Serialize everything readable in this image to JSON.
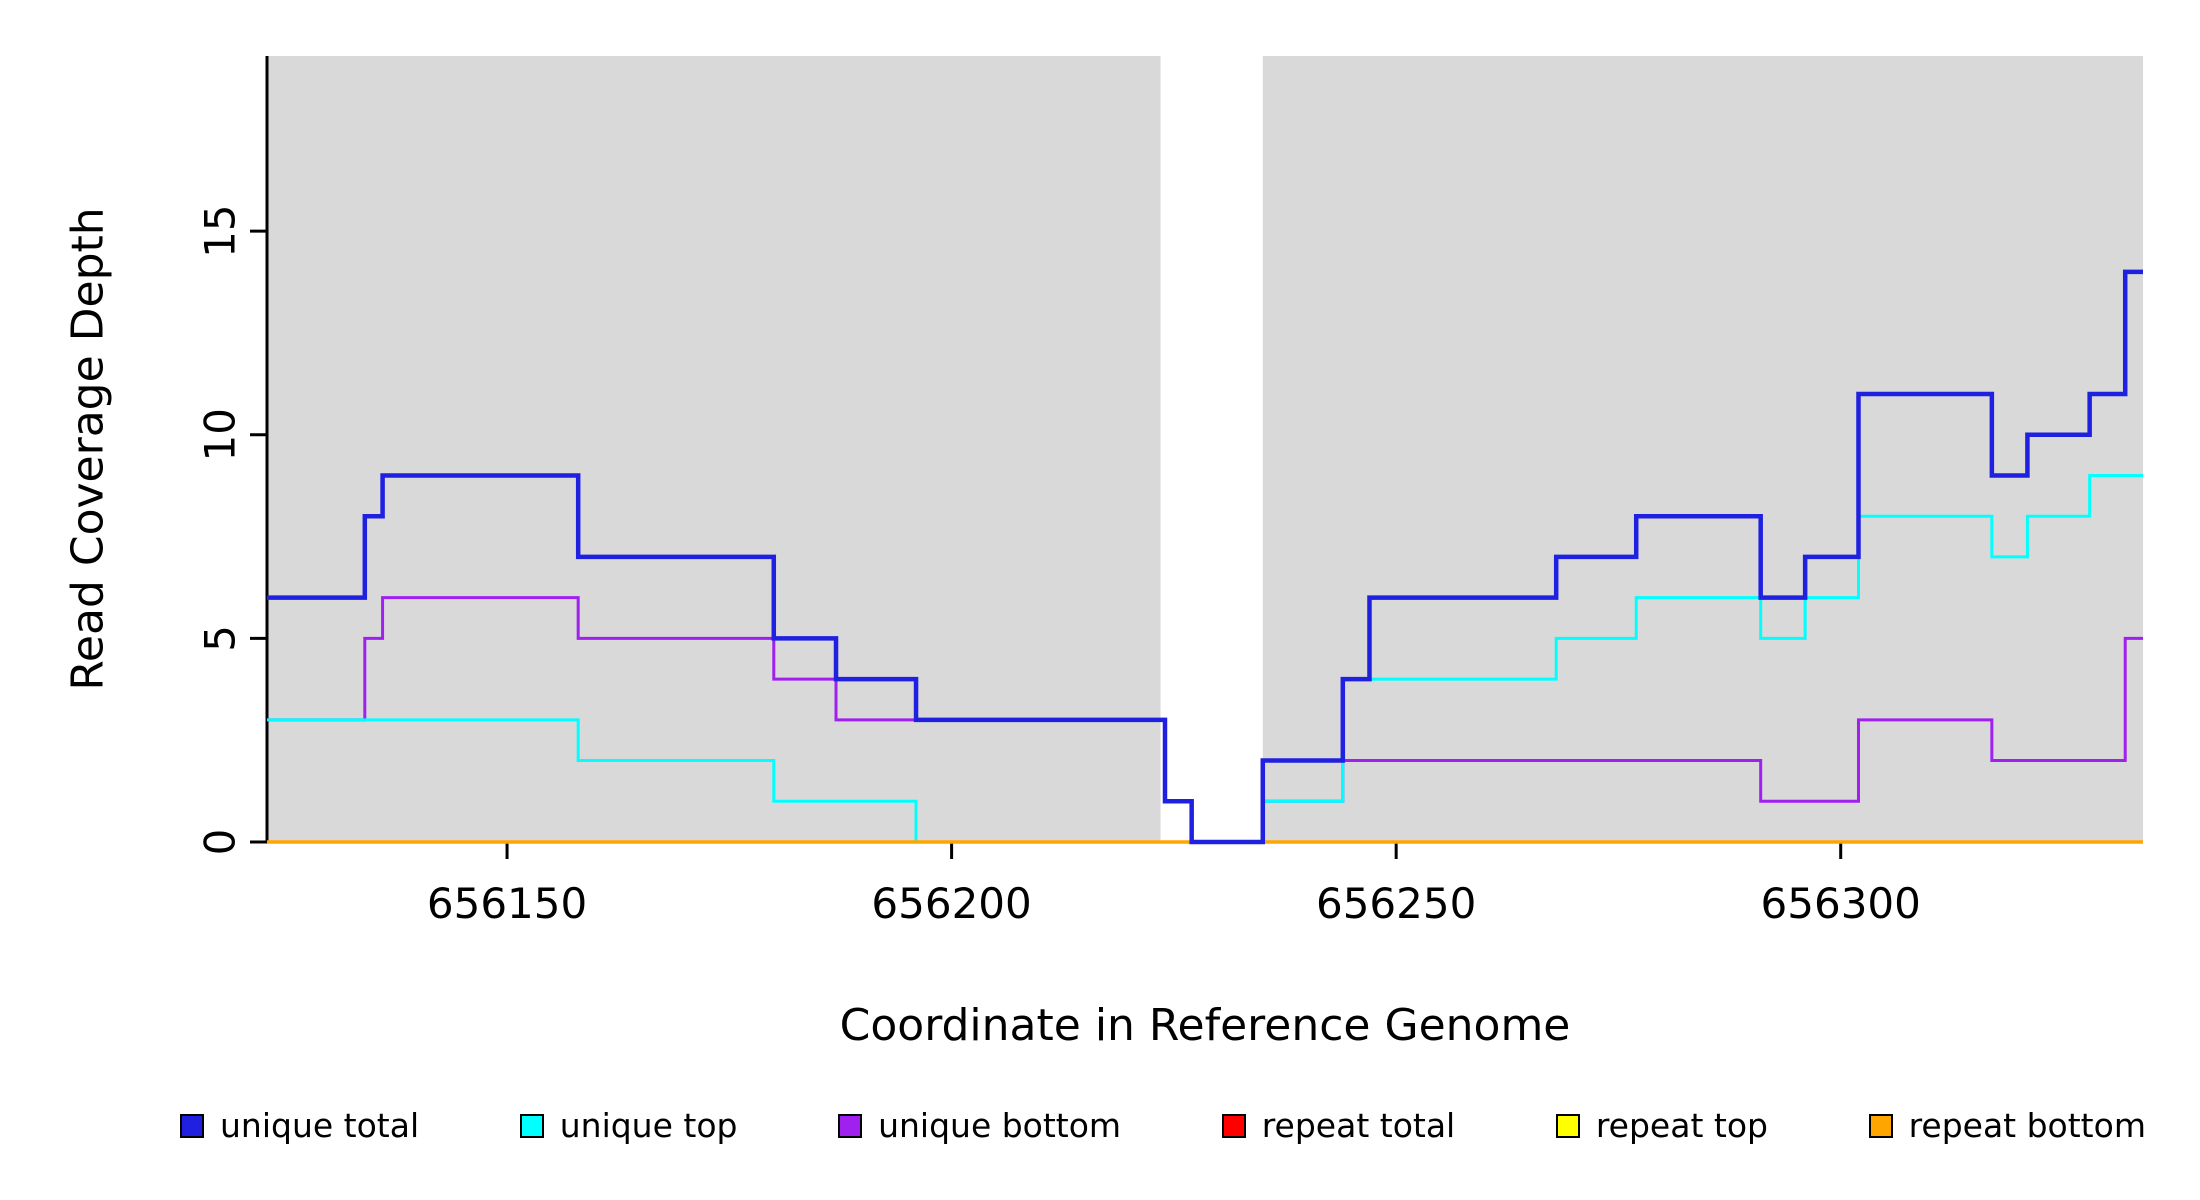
{
  "chart_data": {
    "type": "line",
    "subtype": "step",
    "title": "",
    "xlabel": "Coordinate in Reference Genome",
    "ylabel": "Read Coverage Depth",
    "xlim": [
      656123,
      656334
    ],
    "ylim": [
      0,
      19.3
    ],
    "x_ticks": [
      656150,
      656200,
      656250,
      656300
    ],
    "y_ticks": [
      0,
      5,
      10,
      15
    ],
    "grid": false,
    "legend_position": "bottom",
    "background_color": "#ffffff",
    "shaded_region_color": "#d9d9d9",
    "shaded_regions": [
      {
        "x0": 656123,
        "x1": 656223.5
      },
      {
        "x0": 656235,
        "x1": 656334
      }
    ],
    "draw_order": [
      3,
      4,
      2,
      1,
      5,
      0
    ],
    "series": [
      {
        "name": "unique total",
        "color": "#2020e0",
        "line_width": 4.5,
        "points": [
          [
            656123,
            6
          ],
          [
            656134,
            8
          ],
          [
            656136,
            9
          ],
          [
            656158,
            7
          ],
          [
            656180,
            5
          ],
          [
            656187,
            4
          ],
          [
            656196,
            3
          ],
          [
            656224,
            1
          ],
          [
            656227,
            0
          ],
          [
            656235,
            2
          ],
          [
            656244,
            4
          ],
          [
            656247,
            6
          ],
          [
            656268,
            7
          ],
          [
            656277,
            8
          ],
          [
            656291,
            6
          ],
          [
            656296,
            7
          ],
          [
            656302,
            11
          ],
          [
            656317,
            9
          ],
          [
            656321,
            10
          ],
          [
            656328,
            11
          ],
          [
            656332,
            14
          ],
          [
            656334,
            14
          ]
        ]
      },
      {
        "name": "unique top",
        "color": "#00ffff",
        "line_width": 3,
        "points": [
          [
            656123,
            3
          ],
          [
            656158,
            2
          ],
          [
            656180,
            1
          ],
          [
            656196,
            0
          ],
          [
            656235,
            1
          ],
          [
            656244,
            4
          ],
          [
            656268,
            5
          ],
          [
            656277,
            6
          ],
          [
            656291,
            5
          ],
          [
            656296,
            6
          ],
          [
            656302,
            8
          ],
          [
            656317,
            7
          ],
          [
            656321,
            8
          ],
          [
            656328,
            9
          ],
          [
            656334,
            9
          ]
        ]
      },
      {
        "name": "unique bottom",
        "color": "#a020f0",
        "line_width": 3,
        "points": [
          [
            656123,
            3
          ],
          [
            656134,
            5
          ],
          [
            656136,
            6
          ],
          [
            656158,
            5
          ],
          [
            656180,
            4
          ],
          [
            656187,
            3
          ],
          [
            656224,
            1
          ],
          [
            656227,
            0
          ],
          [
            656235,
            1
          ],
          [
            656244,
            2
          ],
          [
            656291,
            1
          ],
          [
            656302,
            3
          ],
          [
            656317,
            2
          ],
          [
            656332,
            5
          ],
          [
            656334,
            5
          ]
        ]
      },
      {
        "name": "repeat total",
        "color": "#ff0000",
        "line_width": 3,
        "points": [
          [
            656123,
            0
          ],
          [
            656334,
            0
          ]
        ]
      },
      {
        "name": "repeat top",
        "color": "#ffff00",
        "line_width": 3,
        "points": [
          [
            656123,
            0
          ],
          [
            656334,
            0
          ]
        ]
      },
      {
        "name": "repeat bottom",
        "color": "#ffa500",
        "line_width": 3.5,
        "points": [
          [
            656123,
            0
          ],
          [
            656334,
            0
          ]
        ]
      }
    ]
  }
}
